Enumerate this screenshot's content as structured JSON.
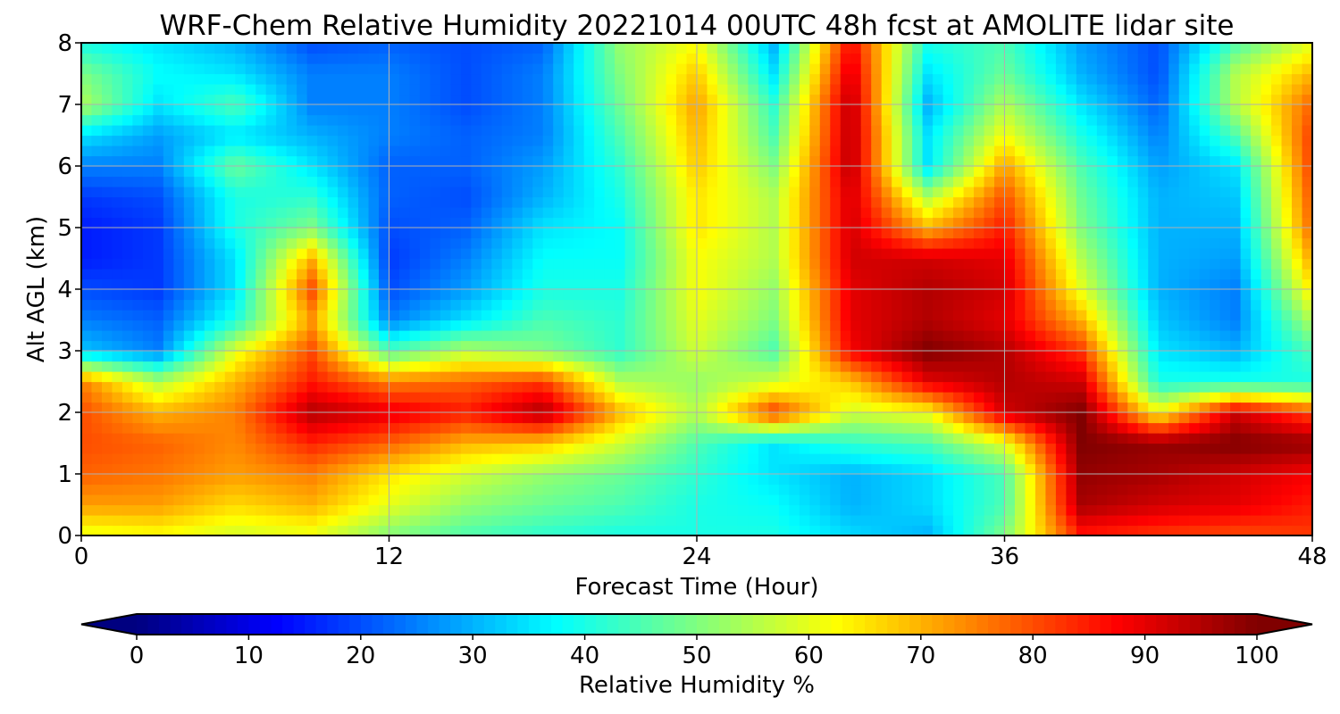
{
  "chart_data": {
    "type": "heatmap",
    "title": "WRF-Chem Relative Humidity 20221014 00UTC 48h fcst at AMOLITE lidar site",
    "xlabel": "Forecast Time (Hour)",
    "ylabel": "Alt AGL (km)",
    "xlim": [
      0,
      48
    ],
    "ylim": [
      0,
      8
    ],
    "x_ticks": [
      "0",
      "12",
      "24",
      "36",
      "48"
    ],
    "y_ticks": [
      "0",
      "1",
      "2",
      "3",
      "4",
      "5",
      "6",
      "7",
      "8"
    ],
    "grid": true,
    "colorbar": {
      "label": "Relative Humidity %",
      "colormap": "jet",
      "range": [
        0,
        100
      ],
      "extend": "both",
      "ticks": [
        "0",
        "10",
        "20",
        "30",
        "40",
        "50",
        "60",
        "70",
        "80",
        "90",
        "100"
      ]
    },
    "x_hours": [
      0,
      3,
      6,
      9,
      12,
      15,
      18,
      21,
      24,
      27,
      30,
      33,
      36,
      39,
      42,
      45,
      48
    ],
    "y_km": [
      0,
      0.5,
      1,
      1.5,
      2,
      2.5,
      3,
      3.5,
      4,
      4.5,
      5,
      5.5,
      6,
      6.5,
      7,
      7.5,
      8
    ],
    "rh_percent": [
      [
        60,
        62,
        58,
        60,
        50,
        45,
        42,
        40,
        40,
        40,
        34,
        30,
        50,
        85,
        82,
        80,
        82
      ],
      [
        72,
        72,
        66,
        70,
        60,
        52,
        48,
        45,
        40,
        38,
        30,
        34,
        45,
        96,
        92,
        90,
        85
      ],
      [
        78,
        76,
        72,
        75,
        65,
        58,
        52,
        48,
        42,
        35,
        30,
        34,
        45,
        98,
        96,
        92,
        88
      ],
      [
        80,
        78,
        74,
        84,
        78,
        70,
        68,
        58,
        45,
        35,
        42,
        45,
        60,
        100,
        98,
        100,
        98
      ],
      [
        80,
        70,
        75,
        95,
        90,
        85,
        96,
        70,
        55,
        82,
        58,
        62,
        92,
        100,
        62,
        92,
        80
      ],
      [
        75,
        55,
        70,
        85,
        75,
        78,
        82,
        55,
        52,
        58,
        68,
        90,
        95,
        92,
        40,
        40,
        40
      ],
      [
        32,
        25,
        60,
        80,
        45,
        55,
        50,
        42,
        58,
        45,
        88,
        100,
        95,
        82,
        35,
        30,
        45
      ],
      [
        25,
        22,
        40,
        72,
        25,
        35,
        45,
        42,
        60,
        50,
        90,
        95,
        90,
        70,
        32,
        25,
        55
      ],
      [
        20,
        18,
        35,
        80,
        20,
        28,
        40,
        40,
        62,
        52,
        90,
        95,
        92,
        60,
        30,
        25,
        65
      ],
      [
        15,
        18,
        35,
        70,
        18,
        25,
        38,
        38,
        62,
        55,
        92,
        92,
        90,
        55,
        30,
        28,
        72
      ],
      [
        15,
        18,
        40,
        50,
        20,
        22,
        35,
        38,
        65,
        55,
        92,
        70,
        85,
        50,
        30,
        30,
        78
      ],
      [
        18,
        20,
        40,
        42,
        22,
        20,
        30,
        40,
        65,
        55,
        92,
        55,
        80,
        48,
        30,
        32,
        80
      ],
      [
        25,
        25,
        48,
        35,
        22,
        22,
        28,
        42,
        68,
        50,
        95,
        35,
        72,
        45,
        28,
        35,
        82
      ],
      [
        35,
        28,
        35,
        30,
        25,
        22,
        25,
        45,
        70,
        45,
        95,
        35,
        62,
        40,
        25,
        45,
        82
      ],
      [
        55,
        35,
        45,
        25,
        25,
        20,
        25,
        48,
        72,
        42,
        95,
        30,
        55,
        35,
        22,
        55,
        78
      ],
      [
        50,
        38,
        35,
        25,
        25,
        20,
        25,
        50,
        68,
        35,
        92,
        35,
        48,
        30,
        20,
        55,
        70
      ],
      [
        40,
        35,
        30,
        20,
        22,
        20,
        22,
        52,
        62,
        30,
        88,
        40,
        45,
        28,
        20,
        45,
        60
      ]
    ]
  }
}
